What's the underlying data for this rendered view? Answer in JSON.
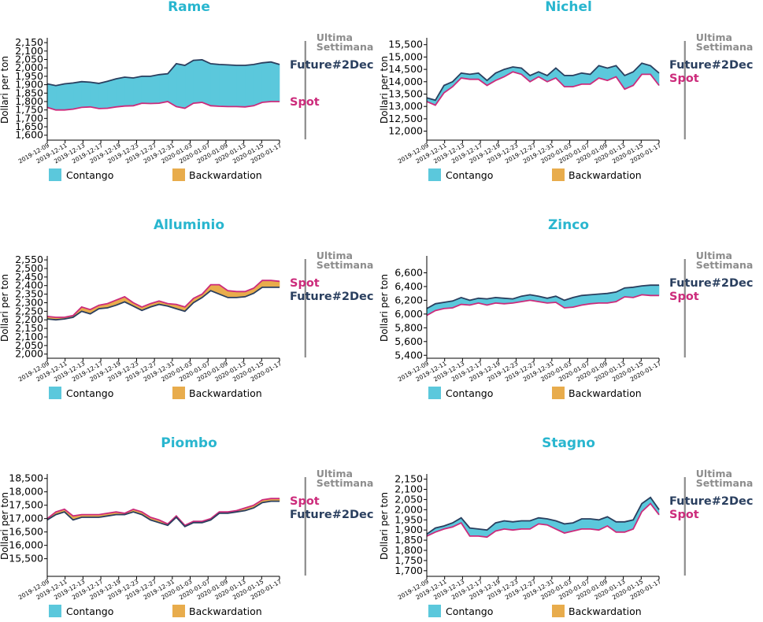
{
  "colors": {
    "title": "#29b6cf",
    "contango": "#5bc8dc",
    "backwardation": "#e8ac4c",
    "future_line": "#2a3f5f",
    "spot_line": "#cc2b7b",
    "week_line": "#8c8c8c"
  },
  "labels": {
    "y_axis": "Dollari per ton",
    "week_line_1": "Ultima",
    "week_line_2": "Settimana",
    "future": "Future#2Dec",
    "spot": "Spot",
    "legend_contango": "Contango",
    "legend_backwardation": "Backwardation"
  },
  "chart_data": [
    {
      "type": "area",
      "title": "Rame",
      "xlabel": "",
      "ylabel": "Dollari per ton",
      "x_ticks": [
        "2019-12-09",
        "2019-12-11",
        "2019-12-13",
        "2019-12-17",
        "2019-12-19",
        "2019-12-23",
        "2019-12-27",
        "2019-12-31",
        "2020-01-03",
        "2020-01-07",
        "2020-01-09",
        "2020-01-13",
        "2020-01-15",
        "2020-01-17"
      ],
      "y_ticks": [
        "1,600",
        "1,650",
        "1,700",
        "1,750",
        "1,800",
        "1,850",
        "1,900",
        "1,950",
        "2,000",
        "2,050",
        "2,100",
        "2,150"
      ],
      "ylim": [
        1580,
        2160
      ],
      "week_marker_x": 30,
      "label_order": "future_first",
      "series": [
        {
          "name": "Future#2Dec",
          "values": [
            1905,
            1895,
            1905,
            1910,
            1918,
            1915,
            1908,
            1920,
            1935,
            1945,
            1940,
            1950,
            1950,
            1960,
            1965,
            2025,
            2015,
            2045,
            2048,
            2025,
            2020,
            2018,
            2015,
            2015,
            2020,
            2030,
            2035,
            2020
          ]
        },
        {
          "name": "Spot",
          "values": [
            1765,
            1750,
            1750,
            1755,
            1765,
            1768,
            1758,
            1760,
            1768,
            1773,
            1775,
            1790,
            1788,
            1790,
            1800,
            1770,
            1760,
            1790,
            1795,
            1775,
            1772,
            1770,
            1770,
            1768,
            1775,
            1795,
            1800,
            1800
          ]
        }
      ]
    },
    {
      "type": "area",
      "title": "Nichel",
      "xlabel": "",
      "ylabel": "Dollari per ton",
      "x_ticks": [
        "2019-12-09",
        "2019-12-11",
        "2019-12-13",
        "2019-12-17",
        "2019-12-19",
        "2019-12-23",
        "2019-12-27",
        "2019-12-31",
        "2020-01-03",
        "2020-01-07",
        "2020-01-09",
        "2020-01-13",
        "2020-01-15",
        "2020-01-17"
      ],
      "y_ticks": [
        "12,000",
        "12,500",
        "13,000",
        "13,500",
        "14,000",
        "14,500",
        "15,000",
        "15,500"
      ],
      "ylim": [
        11700,
        15650
      ],
      "week_marker_x": 30,
      "label_order": "future_first",
      "series": [
        {
          "name": "Future#2Dec",
          "values": [
            13350,
            13250,
            13850,
            14000,
            14350,
            14300,
            14350,
            14050,
            14350,
            14500,
            14600,
            14550,
            14250,
            14400,
            14250,
            14550,
            14250,
            14250,
            14350,
            14300,
            14650,
            14550,
            14650,
            14250,
            14400,
            14750,
            14650,
            14350
          ]
        },
        {
          "name": "Spot",
          "values": [
            13200,
            13050,
            13550,
            13800,
            14150,
            14100,
            14100,
            13850,
            14050,
            14200,
            14400,
            14300,
            14000,
            14200,
            14000,
            14150,
            13800,
            13800,
            13900,
            13900,
            14150,
            14050,
            14200,
            13700,
            13850,
            14300,
            14300,
            13850
          ]
        }
      ]
    },
    {
      "type": "area",
      "title": "Alluminio",
      "xlabel": "",
      "ylabel": "Dollari per ton",
      "x_ticks": [
        "2019-12-09",
        "2019-12-11",
        "2019-12-13",
        "2019-12-17",
        "2019-12-19",
        "2019-12-23",
        "2019-12-27",
        "2019-12-31",
        "2020-01-03",
        "2020-01-07",
        "2020-01-09",
        "2020-01-13",
        "2020-01-15",
        "2020-01-17"
      ],
      "y_ticks": [
        "2,000",
        "2,050",
        "2,100",
        "2,150",
        "2,200",
        "2,250",
        "2,300",
        "2,350",
        "2,400",
        "2,450",
        "2,500",
        "2,550"
      ],
      "ylim": [
        1985,
        2555
      ],
      "week_marker_x": 30,
      "label_order": "spot_first",
      "series": [
        {
          "name": "Future#2Dec",
          "values": [
            2205,
            2200,
            2205,
            2215,
            2250,
            2235,
            2265,
            2270,
            2285,
            2305,
            2280,
            2255,
            2275,
            2290,
            2280,
            2265,
            2250,
            2300,
            2330,
            2370,
            2350,
            2330,
            2330,
            2335,
            2355,
            2390,
            2390,
            2390
          ]
        },
        {
          "name": "Spot",
          "values": [
            2220,
            2215,
            2215,
            2225,
            2275,
            2260,
            2285,
            2295,
            2315,
            2335,
            2300,
            2275,
            2295,
            2310,
            2295,
            2290,
            2275,
            2325,
            2350,
            2405,
            2405,
            2370,
            2365,
            2365,
            2385,
            2430,
            2430,
            2425
          ]
        }
      ]
    },
    {
      "type": "area",
      "title": "Zinco",
      "xlabel": "",
      "ylabel": "Dollari per ton",
      "x_ticks": [
        "2019-12-09",
        "2019-12-11",
        "2019-12-13",
        "2019-12-17",
        "2019-12-19",
        "2019-12-23",
        "2019-12-27",
        "2019-12-31",
        "2020-01-03",
        "2020-01-07",
        "2020-01-09",
        "2020-01-13",
        "2020-01-15",
        "2020-01-17"
      ],
      "y_ticks": [
        "5,400",
        "5,600",
        "5,800",
        "6,000",
        "6,200",
        "6,400",
        "6,600"
      ],
      "ylim": [
        5380,
        6800
      ],
      "week_marker_x": 30,
      "label_order": "future_first",
      "series": [
        {
          "name": "Future#2Dec",
          "values": [
            6080,
            6150,
            6170,
            6190,
            6240,
            6200,
            6230,
            6220,
            6240,
            6230,
            6220,
            6260,
            6280,
            6260,
            6230,
            6260,
            6200,
            6240,
            6270,
            6280,
            6290,
            6300,
            6320,
            6380,
            6390,
            6410,
            6420,
            6420
          ]
        },
        {
          "name": "Spot",
          "values": [
            5980,
            6050,
            6080,
            6090,
            6140,
            6130,
            6160,
            6130,
            6160,
            6150,
            6160,
            6180,
            6200,
            6180,
            6160,
            6170,
            6090,
            6100,
            6130,
            6150,
            6160,
            6160,
            6180,
            6250,
            6240,
            6280,
            6270,
            6270
          ]
        }
      ]
    },
    {
      "type": "area",
      "title": "Piombo",
      "xlabel": "",
      "ylabel": "Dollari per ton",
      "x_ticks": [
        "2019-12-09",
        "2019-12-11",
        "2019-12-13",
        "2019-12-17",
        "2019-12-19",
        "2019-12-23",
        "2019-12-27",
        "2019-12-31",
        "2020-01-03",
        "2020-01-07",
        "2020-01-09",
        "2020-01-13",
        "2020-01-15",
        "2020-01-17"
      ],
      "y_ticks": [
        "15,500",
        "16,000",
        "16,500",
        "17,000",
        "17,500",
        "18,000",
        "18,500"
      ],
      "ylim": [
        14900,
        18550
      ],
      "week_marker_x": 30,
      "label_order": "spot_first",
      "series": [
        {
          "name": "Future#2Dec",
          "values": [
            16950,
            17150,
            17250,
            16950,
            17050,
            17050,
            17050,
            17100,
            17150,
            17150,
            17250,
            17150,
            16950,
            16850,
            16750,
            17050,
            16700,
            16850,
            16850,
            16950,
            17200,
            17200,
            17250,
            17300,
            17400,
            17600,
            17650,
            17650
          ]
        },
        {
          "name": "Spot",
          "values": [
            17000,
            17250,
            17350,
            17100,
            17150,
            17150,
            17150,
            17200,
            17250,
            17200,
            17350,
            17250,
            17050,
            16950,
            16800,
            17100,
            16750,
            16900,
            16900,
            17000,
            17250,
            17250,
            17300,
            17400,
            17500,
            17700,
            17750,
            17750
          ]
        }
      ]
    },
    {
      "type": "area",
      "title": "Stagno",
      "xlabel": "",
      "ylabel": "Dollari per ton",
      "x_ticks": [
        "2019-12-09",
        "2019-12-11",
        "2019-12-13",
        "2019-12-17",
        "2019-12-19",
        "2019-12-23",
        "2019-12-27",
        "2019-12-31",
        "2020-01-03",
        "2020-01-07",
        "2020-01-09",
        "2020-01-13",
        "2020-01-15",
        "2020-01-17"
      ],
      "y_ticks": [
        "1,700",
        "1,750",
        "1,800",
        "1,850",
        "1,900",
        "1,950",
        "2,000",
        "2,050",
        "2,100",
        "2,150"
      ],
      "ylim": [
        1680,
        2160
      ],
      "week_marker_x": 30,
      "label_order": "future_first",
      "series": [
        {
          "name": "Future#2Dec",
          "values": [
            1880,
            1910,
            1920,
            1935,
            1960,
            1910,
            1905,
            1900,
            1935,
            1945,
            1940,
            1945,
            1945,
            1960,
            1955,
            1945,
            1930,
            1935,
            1955,
            1955,
            1950,
            1965,
            1940,
            1940,
            1950,
            2030,
            2060,
            2000
          ]
        },
        {
          "name": "Spot",
          "values": [
            1870,
            1890,
            1905,
            1915,
            1935,
            1870,
            1870,
            1865,
            1895,
            1905,
            1900,
            1905,
            1905,
            1930,
            1925,
            1905,
            1885,
            1895,
            1905,
            1905,
            1900,
            1920,
            1890,
            1890,
            1905,
            1990,
            2030,
            1975
          ]
        }
      ]
    }
  ]
}
